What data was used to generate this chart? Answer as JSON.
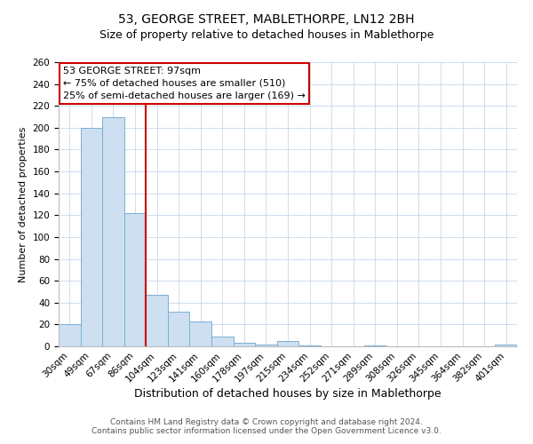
{
  "title": "53, GEORGE STREET, MABLETHORPE, LN12 2BH",
  "subtitle": "Size of property relative to detached houses in Mablethorpe",
  "xlabel": "Distribution of detached houses by size in Mablethorpe",
  "ylabel": "Number of detached properties",
  "bar_labels": [
    "30sqm",
    "49sqm",
    "67sqm",
    "86sqm",
    "104sqm",
    "123sqm",
    "141sqm",
    "160sqm",
    "178sqm",
    "197sqm",
    "215sqm",
    "234sqm",
    "252sqm",
    "271sqm",
    "289sqm",
    "308sqm",
    "326sqm",
    "345sqm",
    "364sqm",
    "382sqm",
    "401sqm"
  ],
  "bar_values": [
    20,
    200,
    210,
    122,
    47,
    32,
    23,
    9,
    3,
    2,
    5,
    1,
    0,
    0,
    1,
    0,
    0,
    0,
    0,
    0,
    2
  ],
  "bar_color": "#cddff0",
  "bar_edge_color": "#7bafd4",
  "highlight_line_color": "#cc0000",
  "annotation_line1": "53 GEORGE STREET: 97sqm",
  "annotation_line2": "← 75% of detached houses are smaller (510)",
  "annotation_line3": "25% of semi-detached houses are larger (169) →",
  "annotation_box_facecolor": "#ffffff",
  "annotation_box_edgecolor": "#cc0000",
  "ylim": [
    0,
    260
  ],
  "yticks": [
    0,
    20,
    40,
    60,
    80,
    100,
    120,
    140,
    160,
    180,
    200,
    220,
    240,
    260
  ],
  "footer_line1": "Contains HM Land Registry data © Crown copyright and database right 2024.",
  "footer_line2": "Contains public sector information licensed under the Open Government Licence v3.0.",
  "background_color": "#ffffff",
  "grid_color": "#c8d8ea",
  "title_fontsize": 10,
  "subtitle_fontsize": 9,
  "xlabel_fontsize": 9,
  "ylabel_fontsize": 8,
  "tick_fontsize": 7.5,
  "annotation_fontsize": 8,
  "footer_fontsize": 6.5
}
